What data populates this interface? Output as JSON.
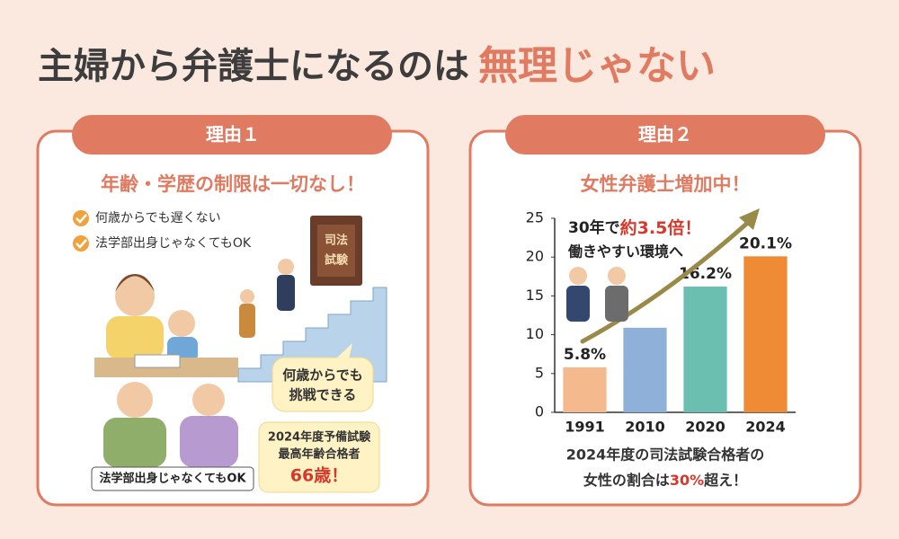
{
  "header": {
    "title_main": "主婦から弁護士になるのは",
    "title_emphasis": "無理じゃない"
  },
  "panels": [
    {
      "tab": "理由１",
      "heading": "年齢・学歴の制限は一切なし！",
      "checklist": [
        "何歳からでも遅くない",
        "法学部出身じゃなくてもOK"
      ],
      "book_title": [
        "司法",
        "試験"
      ],
      "speech_bubble": [
        "何歳からでも",
        "挑戦できる"
      ],
      "record_box": [
        "2024年度予備試験",
        "最高年齢合格者",
        "66歳！"
      ],
      "caption": "法学部出身じゃなくてもOK"
    },
    {
      "tab": "理由２",
      "heading": "女性弁護士増加中！",
      "footnote": [
        "2024年度の司法試験合格者の",
        "女性の割合は",
        "30%",
        "超え！"
      ]
    }
  ],
  "chart_data": {
    "type": "bar",
    "categories": [
      "1991",
      "2010",
      "2020",
      "2024"
    ],
    "values": [
      5.8,
      10.9,
      16.2,
      20.1
    ],
    "value_labels": [
      "5.8%",
      null,
      "16.2%",
      "20.1%"
    ],
    "colors": [
      "#f4b98c",
      "#8fb0d8",
      "#6bbfb0",
      "#ef8a35"
    ],
    "ylim": [
      0,
      25
    ],
    "yticks": [
      0,
      5,
      10,
      15,
      20,
      25
    ],
    "annotations": [
      "30年で",
      "約3.5倍！",
      "働きやすい環境へ"
    ]
  }
}
